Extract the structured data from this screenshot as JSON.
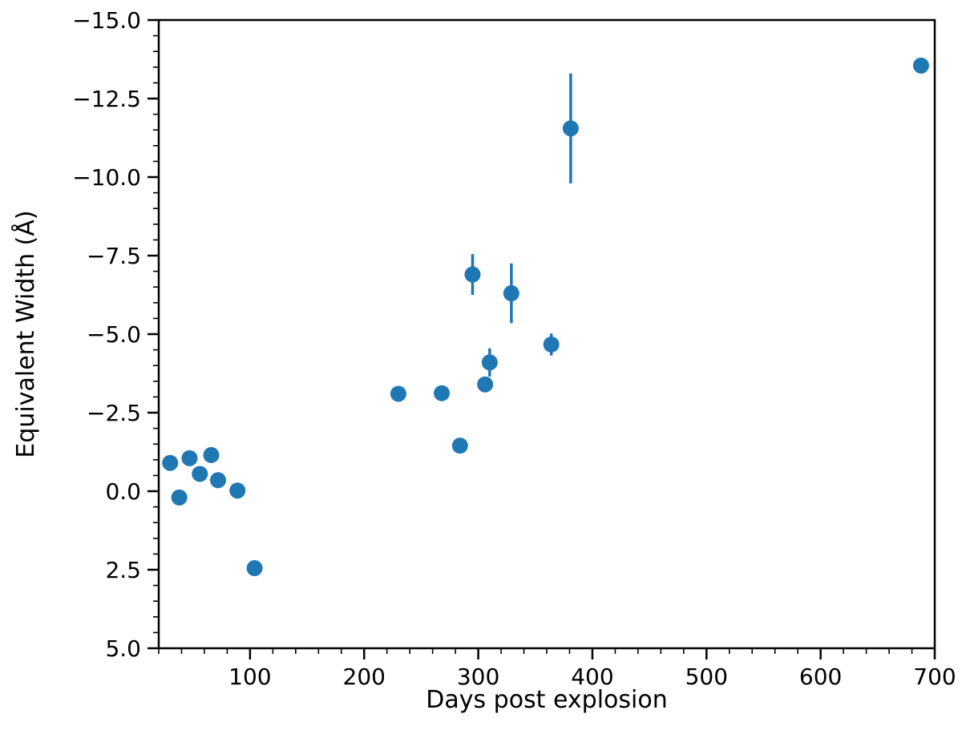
{
  "chart_data": {
    "type": "scatter",
    "title": "",
    "xlabel": "Days post explosion",
    "ylabel": "Equivalent Width (Å)",
    "xlim": [
      20,
      700
    ],
    "ylim": [
      5.0,
      -15.0
    ],
    "y_inverted": true,
    "grid": false,
    "x_major_ticks": [
      100,
      200,
      300,
      400,
      500,
      600,
      700
    ],
    "x_tick_labels": [
      "100",
      "200",
      "300",
      "400",
      "500",
      "600",
      "700"
    ],
    "x_minor_step": 20,
    "y_major_ticks": [
      -15.0,
      -12.5,
      -10.0,
      -7.5,
      -5.0,
      -2.5,
      0.0,
      2.5,
      5.0
    ],
    "y_tick_labels": [
      "−15.0",
      "−12.5",
      "−10.0",
      "−7.5",
      "−5.0",
      "−2.5",
      "0.0",
      "2.5",
      "5.0"
    ],
    "y_minor_step": 0.5,
    "marker_color": "#1f77b4",
    "series": [
      {
        "points": [
          {
            "x": 30,
            "y": -0.9
          },
          {
            "x": 38,
            "y": 0.2
          },
          {
            "x": 47,
            "y": -1.05
          },
          {
            "x": 56,
            "y": -0.55
          },
          {
            "x": 66,
            "y": -1.15
          },
          {
            "x": 72,
            "y": -0.35
          },
          {
            "x": 89,
            "y": -0.02
          },
          {
            "x": 104,
            "y": 2.45
          },
          {
            "x": 230,
            "y": -3.1
          },
          {
            "x": 268,
            "y": -3.12
          },
          {
            "x": 284,
            "y": -1.45
          },
          {
            "x": 295,
            "y": -6.9,
            "yerr": 0.65
          },
          {
            "x": 306,
            "y": -3.4
          },
          {
            "x": 310,
            "y": -4.1,
            "yerr": 0.45
          },
          {
            "x": 329,
            "y": -6.3,
            "yerr": 0.95
          },
          {
            "x": 364,
            "y": -4.67,
            "yerr": 0.35
          },
          {
            "x": 381,
            "y": -11.55,
            "yerr": 1.75
          },
          {
            "x": 688,
            "y": -13.55
          }
        ]
      }
    ]
  }
}
